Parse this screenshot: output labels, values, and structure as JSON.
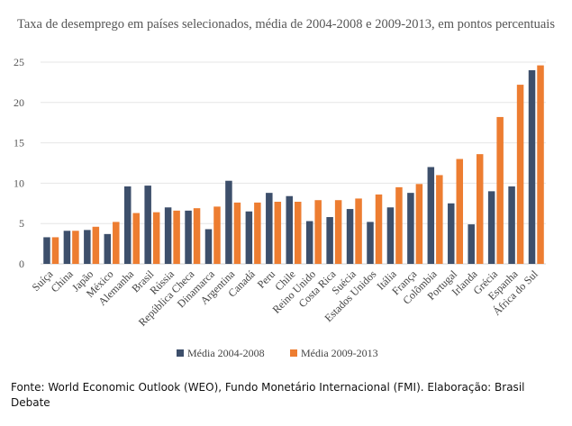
{
  "chart_data": {
    "type": "bar",
    "title": "Taxa de desemprego em países selecionados, média de 2004-2008 e 2009-2013, em pontos percentuais",
    "xlabel": "",
    "ylabel": "",
    "ylim": [
      0,
      25
    ],
    "yticks": [
      0,
      5,
      10,
      15,
      20,
      25
    ],
    "grid": true,
    "legend": "bottom",
    "categories": [
      "Suíça",
      "China",
      "Japão",
      "México",
      "Alemanha",
      "Brasil",
      "Rússia",
      "República Checa",
      "Dinamarca",
      "Argentina",
      "Canadá",
      "Peru",
      "Chile",
      "Reino Unido",
      "Costa Rica",
      "Suécia",
      "Estados Unidos",
      "Itália",
      "França",
      "Colômbia",
      "Portugal",
      "Irlanda",
      "Grécia",
      "Espanha",
      "África do Sul"
    ],
    "series": [
      {
        "name": "Média 2004-2008",
        "color": "#3d4f6b",
        "values": [
          3.3,
          4.1,
          4.2,
          3.7,
          9.6,
          9.7,
          7.0,
          6.6,
          4.3,
          10.3,
          6.5,
          8.8,
          8.4,
          5.3,
          5.8,
          6.8,
          5.2,
          7.0,
          8.8,
          12.0,
          7.5,
          4.9,
          9.0,
          9.6,
          24.0
        ]
      },
      {
        "name": "Média 2009-2013",
        "color": "#ed7d31",
        "values": [
          3.3,
          4.1,
          4.6,
          5.2,
          6.3,
          6.4,
          6.6,
          6.9,
          7.1,
          7.6,
          7.6,
          7.7,
          7.7,
          7.9,
          7.9,
          8.1,
          8.6,
          9.5,
          9.9,
          11.0,
          13.0,
          13.6,
          18.2,
          22.2,
          24.6
        ]
      }
    ]
  },
  "footer": "Fonte: World Economic Outlook (WEO), Fundo Monetário Internacional (FMI). Elaboração: Brasil Debate"
}
